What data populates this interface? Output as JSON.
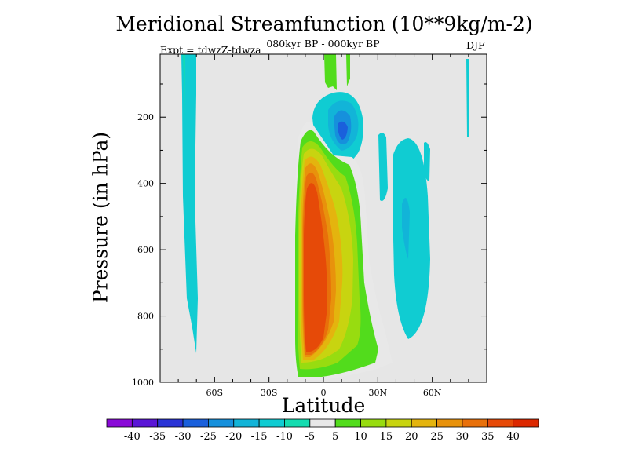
{
  "chart_data": {
    "type": "heatmap",
    "title": "Meridional Streamfunction (10**9kg/m-2)",
    "subtitle": "080kyr BP - 000kyr BP",
    "left_string": "Expt = tdwzZ-tdwza",
    "right_string": "DJF",
    "xlabel": "Latitude",
    "ylabel": "Pressure (in hPa)",
    "xlim": [
      -90,
      90
    ],
    "ylim": [
      1000,
      10
    ],
    "y_reversed": true,
    "x_ticks": [
      -60,
      -30,
      0,
      30,
      60
    ],
    "x_tick_labels": [
      "60S",
      "30S",
      "0",
      "30N",
      "60N"
    ],
    "y_ticks": [
      200,
      400,
      600,
      800,
      1000
    ],
    "y_tick_labels": [
      "200",
      "400",
      "600",
      "800",
      "1000"
    ],
    "background_color": "#e6e6e6",
    "colorbar": {
      "levels": [
        -40,
        -35,
        -30,
        -25,
        -20,
        -15,
        -10,
        -5,
        5,
        10,
        15,
        20,
        25,
        30,
        35,
        40
      ],
      "labels": [
        "-40",
        "-35",
        "-30",
        "-25",
        "-20",
        "-15",
        "-10",
        "-5",
        "5",
        "10",
        "15",
        "20",
        "25",
        "30",
        "35",
        "40"
      ],
      "colors": [
        "#8a0ad8",
        "#5a16d6",
        "#2a34d6",
        "#1a60dc",
        "#1690dc",
        "#12b4d8",
        "#10ccd2",
        "#14dcb0",
        "#e8e8e8",
        "#52dc1c",
        "#98dc10",
        "#c8d410",
        "#e4b40e",
        "#e8920c",
        "#e8700a",
        "#e64a08",
        "#dc2800"
      ]
    },
    "features": [
      {
        "name": "main positive cell",
        "lat_range": [
          -12,
          8
        ],
        "p_range": [
          210,
          980
        ],
        "peak_value": 45,
        "core_lat": -3,
        "core_p": 650
      },
      {
        "name": "upper tropical negative cell",
        "lat_range": [
          -5,
          15
        ],
        "p_range": [
          130,
          280
        ],
        "peak_value": -22,
        "core_lat": 7,
        "core_p": 225
      },
      {
        "name": "northern subtropical negative cell",
        "lat_range": [
          38,
          56
        ],
        "p_range": [
          290,
          870
        ],
        "peak_value": -12
      },
      {
        "name": "southern extratropical negative band",
        "lat_range": [
          -77,
          -67
        ],
        "p_range": [
          10,
          830
        ],
        "peak_value": -8
      },
      {
        "name": "upper positive strip",
        "lat_range": [
          0,
          6
        ],
        "p_range": [
          10,
          130
        ],
        "peak_value": 8
      }
    ]
  }
}
